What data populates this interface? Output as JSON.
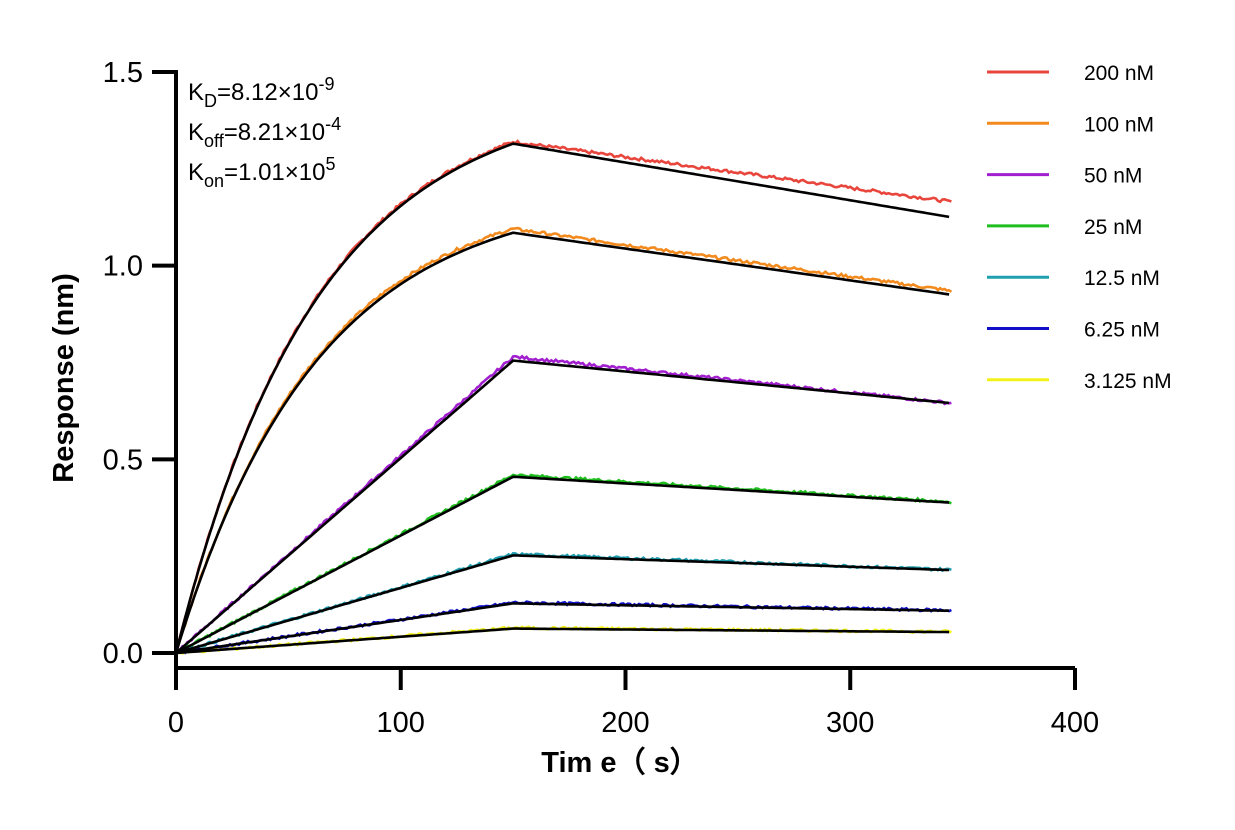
{
  "chart_data": {
    "type": "line",
    "title": "",
    "xlabel": "Tim e（ s）",
    "ylabel": "Response (nm)",
    "xlim": [
      0,
      400
    ],
    "ylim": [
      0,
      1.5
    ],
    "x_ticks": [
      "0",
      "100",
      "200",
      "300",
      "400"
    ],
    "y_ticks": [
      "0.0",
      "0.5",
      "1.0",
      "1.5"
    ],
    "grid": false,
    "legend_position": "right",
    "association_end_s": 150,
    "end_s": 345,
    "annotations": [
      {
        "base": "K",
        "sub": "D",
        "text": "=8.12×10",
        "sup": "-9"
      },
      {
        "base": "K",
        "sub": "off",
        "text": "=8.21×10",
        "sup": "-4"
      },
      {
        "base": "K",
        "sub": "on",
        "text": "=1.01×10",
        "sup": "5"
      }
    ],
    "series": [
      {
        "name": "200 nM",
        "color": "#e8463c",
        "peak": 1.32,
        "end": 1.165
      },
      {
        "name": "100 nM",
        "color": "#f28a1e",
        "peak": 1.095,
        "end": 0.935
      },
      {
        "name": "50 nM",
        "color": "#a21fd0",
        "peak": 0.765,
        "end": 0.645
      },
      {
        "name": "25 nM",
        "color": "#1fbf1f",
        "peak": 0.46,
        "end": 0.39
      },
      {
        "name": "12.5 nM",
        "color": "#1f9fb0",
        "peak": 0.255,
        "end": 0.215
      },
      {
        "name": "6.25 nM",
        "color": "#1010c8",
        "peak": 0.13,
        "end": 0.11
      },
      {
        "name": "3.125 nM",
        "color": "#f2f21a",
        "peak": 0.065,
        "end": 0.055
      }
    ],
    "fit": {
      "color": "#000000",
      "peaks": [
        1.315,
        1.085,
        0.755,
        0.455,
        0.252,
        0.128,
        0.063
      ],
      "ends": [
        1.125,
        0.925,
        0.645,
        0.388,
        0.214,
        0.109,
        0.054
      ]
    }
  }
}
